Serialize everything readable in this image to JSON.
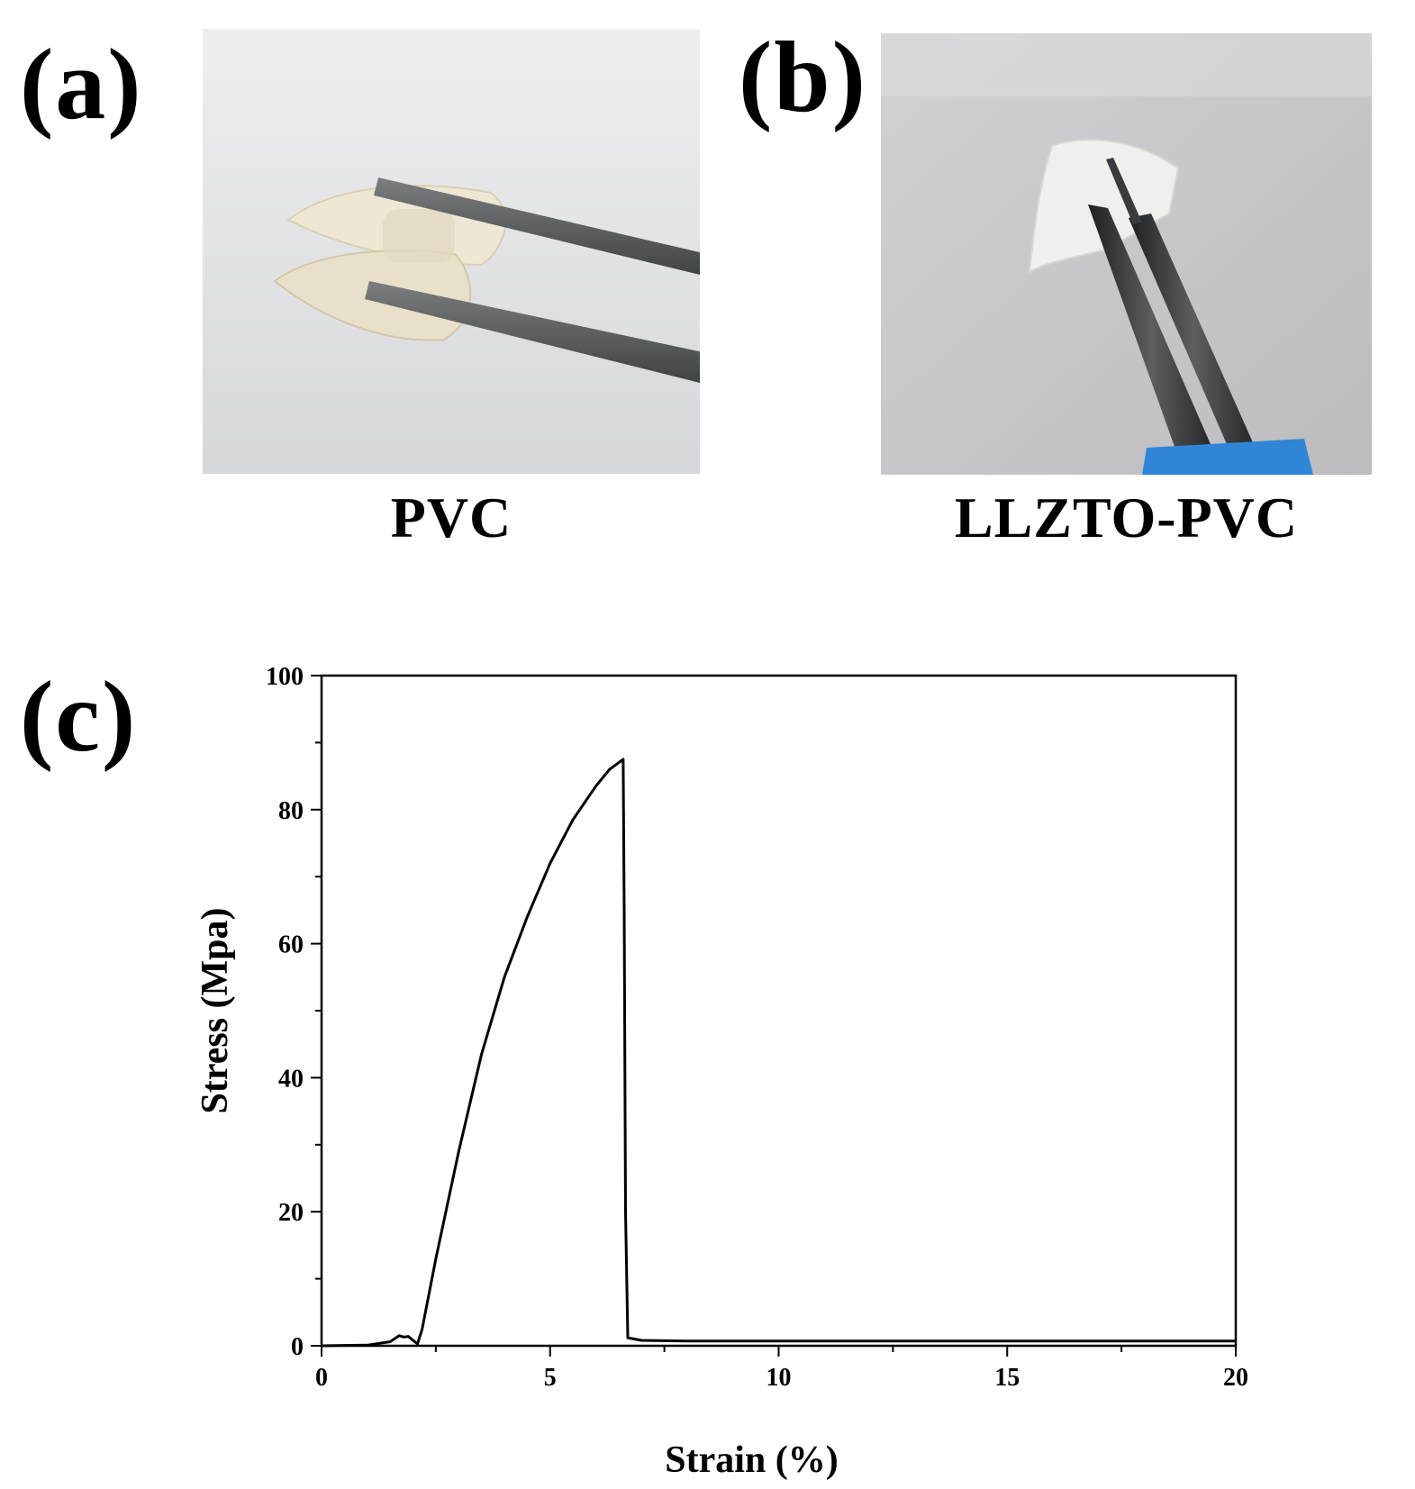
{
  "panels": {
    "a": {
      "letter": "(a)",
      "caption": "PVC"
    },
    "b": {
      "letter": "(b)",
      "caption": "LLZTO-PVC"
    },
    "c": {
      "letter": "(c)"
    }
  },
  "colors": {
    "line": "#000000",
    "photo_background_a": "#e6e6e8",
    "photo_background_b": "#c9c9cb",
    "membrane": "#ede6d2",
    "tweezer": "#5a5d5e",
    "blue_handle": "#2f86d6"
  },
  "chart_data": {
    "type": "line",
    "title": "",
    "xlabel": "Strain (%)",
    "ylabel": "Stress (Mpa)",
    "xlim": [
      0,
      20
    ],
    "ylim": [
      0,
      100
    ],
    "xticks": [
      0,
      5,
      10,
      15,
      20
    ],
    "yticks": [
      0,
      20,
      40,
      60,
      80,
      100
    ],
    "x_minor_step": 2.5,
    "y_minor_step": 10,
    "grid": false,
    "legend": "none",
    "series": [
      {
        "x": [
          0,
          1.0,
          1.5,
          1.7,
          1.8,
          1.9,
          2.0,
          2.1,
          2.2,
          2.5,
          3.0,
          3.5,
          4.0,
          4.5,
          5.0,
          5.5,
          6.0,
          6.3,
          6.5,
          6.6,
          6.62,
          6.65,
          6.7,
          7.0,
          8.0,
          10.0,
          12.0,
          14.0,
          16.0,
          18.0,
          20.0
        ],
        "y": [
          0,
          0.1,
          0.6,
          1.5,
          1.3,
          1.4,
          0.8,
          0.3,
          2.5,
          13.0,
          29.0,
          43.5,
          55.0,
          64.0,
          72.0,
          78.5,
          83.5,
          86.0,
          87.0,
          87.5,
          65.0,
          20.0,
          1.2,
          0.8,
          0.7,
          0.7,
          0.7,
          0.7,
          0.7,
          0.7,
          0.7
        ]
      }
    ]
  }
}
